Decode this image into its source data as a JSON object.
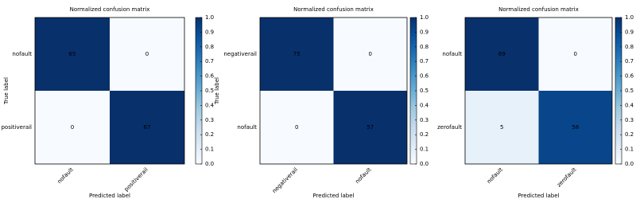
{
  "chart_data": [
    {
      "type": "heatmap",
      "title": "Normalized confusion matrix",
      "x_categories": [
        "nofault",
        "positiverail"
      ],
      "y_categories": [
        "nofault",
        "positiverail"
      ],
      "values": [
        [
          65,
          0
        ],
        [
          0,
          67
        ]
      ],
      "xlabel": "Predicted label",
      "ylabel": "True label",
      "colormap": "Blues",
      "clim": [
        0,
        1
      ],
      "cticks": [
        {
          "value": 0,
          "label": "0.0"
        },
        0.1,
        0.2,
        0.3,
        0.4,
        0.5,
        0.6,
        0.7,
        0.8,
        0.9,
        {
          "value": 1,
          "label": "1.0"
        }
      ]
    },
    {
      "type": "heatmap",
      "title": "Normalized confusion matrix",
      "x_categories": [
        "negativerail",
        "nofault"
      ],
      "y_categories": [
        "negativerail",
        "nofault"
      ],
      "values": [
        [
          75,
          0
        ],
        [
          0,
          57
        ]
      ],
      "xlabel": "Predicted label",
      "ylabel": "True label",
      "colormap": "Blues",
      "clim": [
        0,
        1
      ],
      "cticks": [
        {
          "value": 0,
          "label": "0.0"
        },
        0.1,
        0.2,
        0.3,
        0.4,
        0.5,
        0.6,
        0.7,
        0.8,
        0.9,
        {
          "value": 1,
          "label": "1.0"
        }
      ]
    },
    {
      "type": "heatmap",
      "title": "Normalized confusion matrix",
      "x_categories": [
        "nofault",
        "zerofault"
      ],
      "y_categories": [
        "nofault",
        "zerofault"
      ],
      "values": [
        [
          69,
          0
        ],
        [
          5,
          58
        ]
      ],
      "xlabel": "Predicted label",
      "colormap": "Blues",
      "clim": [
        0,
        1
      ],
      "cticks": [
        {
          "value": 0,
          "label": "0.0"
        },
        0.1,
        0.2,
        0.3,
        0.4,
        0.5,
        0.6,
        0.7,
        0.8,
        0.9,
        {
          "value": 1,
          "label": "1.0"
        }
      ]
    }
  ]
}
